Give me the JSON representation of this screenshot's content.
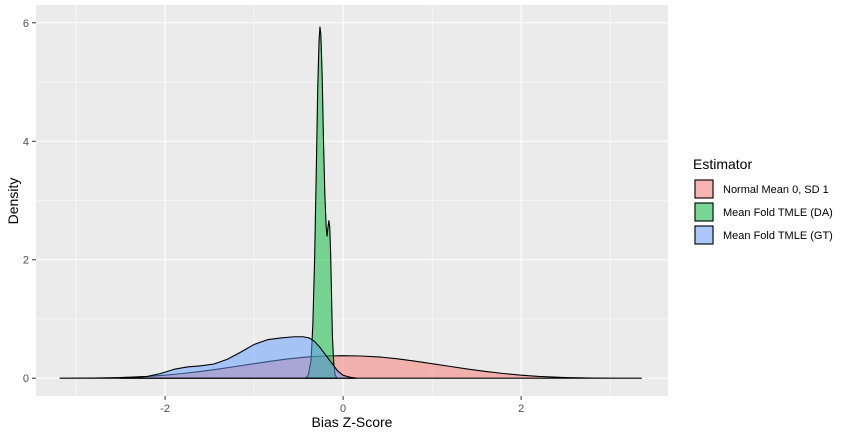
{
  "chart_data": {
    "type": "area",
    "title": "",
    "xlabel": "Bias Z-Score",
    "ylabel": "Density",
    "xlim": [
      -3.45,
      3.65
    ],
    "ylim": [
      -0.3,
      6.3
    ],
    "x_ticks": [
      -2,
      0,
      2
    ],
    "x_tick_labels": [
      "-2",
      "0",
      "2"
    ],
    "y_ticks": [
      0,
      2,
      4,
      6
    ],
    "y_tick_labels": [
      "0",
      "2",
      "4",
      "6"
    ],
    "grid": true,
    "legend_position": "right",
    "legend_title": "Estimator",
    "series": [
      {
        "name": "Normal Mean 0, SD 1",
        "fill": "#F8766D",
        "points": [
          [
            -3.18,
            0.0
          ],
          [
            -2.8,
            0.003
          ],
          [
            -2.5,
            0.012
          ],
          [
            -2.2,
            0.03
          ],
          [
            -2.0,
            0.052
          ],
          [
            -1.8,
            0.08
          ],
          [
            -1.6,
            0.115
          ],
          [
            -1.4,
            0.155
          ],
          [
            -1.2,
            0.2
          ],
          [
            -1.0,
            0.245
          ],
          [
            -0.8,
            0.29
          ],
          [
            -0.6,
            0.33
          ],
          [
            -0.4,
            0.36
          ],
          [
            -0.2,
            0.375
          ],
          [
            0.0,
            0.38
          ],
          [
            0.2,
            0.375
          ],
          [
            0.4,
            0.36
          ],
          [
            0.6,
            0.33
          ],
          [
            0.8,
            0.29
          ],
          [
            1.0,
            0.245
          ],
          [
            1.2,
            0.2
          ],
          [
            1.4,
            0.155
          ],
          [
            1.6,
            0.115
          ],
          [
            1.8,
            0.08
          ],
          [
            2.0,
            0.052
          ],
          [
            2.2,
            0.03
          ],
          [
            2.5,
            0.012
          ],
          [
            2.8,
            0.003
          ],
          [
            3.1,
            0.001
          ],
          [
            3.35,
            0.0
          ]
        ]
      },
      {
        "name": "Mean Fold TMLE (DA)",
        "fill": "#00BA38",
        "points": [
          [
            -0.42,
            0.0
          ],
          [
            -0.39,
            0.06
          ],
          [
            -0.36,
            0.3
          ],
          [
            -0.34,
            0.9
          ],
          [
            -0.32,
            2.0
          ],
          [
            -0.3,
            3.6
          ],
          [
            -0.285,
            4.9
          ],
          [
            -0.27,
            5.7
          ],
          [
            -0.26,
            5.93
          ],
          [
            -0.25,
            5.8
          ],
          [
            -0.235,
            5.1
          ],
          [
            -0.22,
            4.0
          ],
          [
            -0.205,
            3.1
          ],
          [
            -0.19,
            2.55
          ],
          [
            -0.18,
            2.4
          ],
          [
            -0.17,
            2.55
          ],
          [
            -0.16,
            2.66
          ],
          [
            -0.15,
            2.55
          ],
          [
            -0.14,
            2.1
          ],
          [
            -0.13,
            1.4
          ],
          [
            -0.12,
            0.7
          ],
          [
            -0.105,
            0.25
          ],
          [
            -0.09,
            0.06
          ],
          [
            -0.07,
            0.0
          ]
        ]
      },
      {
        "name": "Mean Fold TMLE (GT)",
        "fill": "#619CFF",
        "points": [
          [
            -2.5,
            0.0
          ],
          [
            -2.2,
            0.03
          ],
          [
            -2.05,
            0.08
          ],
          [
            -1.9,
            0.15
          ],
          [
            -1.75,
            0.19
          ],
          [
            -1.6,
            0.21
          ],
          [
            -1.45,
            0.24
          ],
          [
            -1.3,
            0.32
          ],
          [
            -1.15,
            0.44
          ],
          [
            -1.0,
            0.57
          ],
          [
            -0.85,
            0.65
          ],
          [
            -0.7,
            0.68
          ],
          [
            -0.55,
            0.7
          ],
          [
            -0.45,
            0.7
          ],
          [
            -0.38,
            0.68
          ],
          [
            -0.32,
            0.62
          ],
          [
            -0.26,
            0.52
          ],
          [
            -0.2,
            0.4
          ],
          [
            -0.13,
            0.26
          ],
          [
            -0.06,
            0.12
          ],
          [
            0.0,
            0.05
          ],
          [
            0.08,
            0.015
          ],
          [
            0.15,
            0.0
          ]
        ]
      }
    ]
  }
}
